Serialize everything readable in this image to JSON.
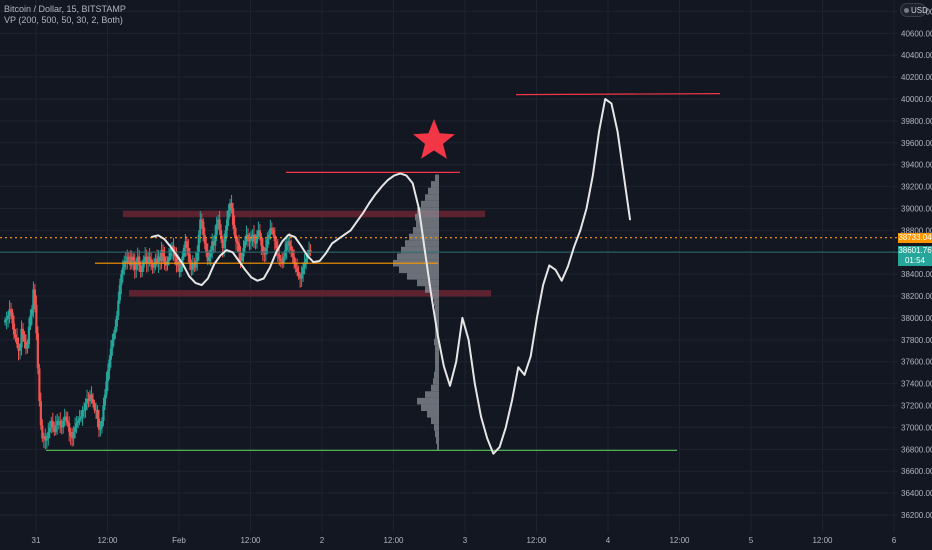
{
  "header": {
    "symbol_line": "Bitcoin / Dollar, 15, BITSTAMP",
    "indicator_line": "VP (200, 500, 50, 30, 2, Both)"
  },
  "currency_badge": "USD",
  "price_tags": {
    "dotted_level": "38733.04",
    "last_price": "38601.76",
    "countdown": "01:54"
  },
  "colors": {
    "background": "#131722",
    "up_candle": "#26a69a",
    "down_candle": "#ef5350",
    "dotted_level": "#ff9800",
    "poc_line": "#ff9800",
    "resistance_line": "#f23645",
    "support_line": "#4caf50",
    "zone_fill": "#6b2433",
    "star": "#f23645",
    "projection": "#e6e6e6",
    "volume_profile": "#8a8d96"
  },
  "chart_data": {
    "type": "candlestick",
    "y_axis": {
      "min": 36100,
      "max": 41000,
      "ticks": [
        36200,
        36400,
        36600,
        36800,
        37000,
        37200,
        37400,
        37600,
        37800,
        38000,
        38200,
        38400,
        38600,
        38800,
        39000,
        39200,
        39400,
        39600,
        39800,
        40000,
        40200,
        40400,
        40600,
        40800
      ],
      "tick_labels": [
        "36200.00",
        "36400.00",
        "36600.00",
        "36800.00",
        "37000.00",
        "37200.00",
        "37400.00",
        "37600.00",
        "37800.00",
        "38000.00",
        "38200.00",
        "38400.00",
        "38600.00",
        "38800.00",
        "39000.00",
        "39200.00",
        "39400.00",
        "39600.00",
        "39800.00",
        "40000.00",
        "40200.00",
        "40400.00",
        "40600.00",
        "40800.00"
      ]
    },
    "x_axis": {
      "ticks": [
        0,
        48,
        96,
        144,
        192,
        240,
        288,
        336,
        384,
        432,
        480,
        528,
        576,
        624
      ],
      "tick_labels": [
        "31",
        "12:00",
        "Feb",
        "12:00",
        "2",
        "12:00",
        "3",
        "12:00",
        "4",
        "12:00",
        "5",
        "12:00",
        "6",
        ""
      ]
    },
    "candles_close": [
      37980,
      37990,
      38020,
      38080,
      38050,
      37950,
      37850,
      37820,
      37760,
      37700,
      37730,
      37900,
      37850,
      37780,
      37720,
      37760,
      37920,
      38020,
      38080,
      38260,
      38120,
      37860,
      37540,
      37240,
      37020,
      36900,
      36920,
      36880,
      36900,
      36960,
      37000,
      37060,
      37000,
      36960,
      37020,
      37060,
      37060,
      37020,
      37000,
      37060,
      37100,
      37060,
      37040,
      36960,
      36920,
      36900,
      36960,
      37000,
      37040,
      37060,
      37080,
      37100,
      37160,
      37160,
      37220,
      37260,
      37240,
      37300,
      37260,
      37220,
      37160,
      37160,
      37080,
      36980,
      37000,
      37060,
      37200,
      37300,
      37420,
      37520,
      37620,
      37720,
      37800,
      37860,
      37920,
      38020,
      38160,
      38300,
      38400,
      38460,
      38520,
      38500,
      38560,
      38540,
      38480,
      38560,
      38520,
      38440,
      38500,
      38560,
      38480,
      38420,
      38460,
      38520,
      38560,
      38500,
      38560,
      38540,
      38500,
      38460,
      38480,
      38540,
      38500,
      38560,
      38520,
      38620,
      38560,
      38500,
      38480,
      38520,
      38560,
      38620,
      38660,
      38600,
      38560,
      38480,
      38520,
      38420,
      38460,
      38560,
      38640,
      38700,
      38640,
      38580,
      38500,
      38440,
      38500,
      38460,
      38520,
      38600,
      38760,
      38900,
      38880,
      38760,
      38680,
      38600,
      38520,
      38560,
      38620,
      38700,
      38660,
      38760,
      38860,
      38900,
      38800,
      38720,
      38640,
      38700,
      38800,
      38900,
      38980,
      39050,
      39000,
      38850,
      38760,
      38700,
      38680,
      38600,
      38520,
      38560,
      38640,
      38700,
      38760,
      38740,
      38700,
      38720,
      38760,
      38700,
      38680,
      38760,
      38800,
      38740,
      38660,
      38600,
      38580,
      38640,
      38720,
      38760,
      38820,
      38800,
      38760,
      38700,
      38640,
      38580,
      38540,
      38520,
      38500,
      38560,
      38620,
      38680,
      38700,
      38660,
      38620,
      38560,
      38500,
      38460,
      38420,
      38380,
      38360,
      38400,
      38460,
      38500,
      38540,
      38580,
      38620,
      38600
    ],
    "levels": {
      "resistance_top": 40040,
      "resistance_mid": 39330,
      "dotted": 38733.04,
      "last": 38601.76,
      "poc": 38500,
      "support": 36790
    },
    "zones": [
      {
        "top": 38980,
        "bottom": 38920
      },
      {
        "top": 38255,
        "bottom": 38195
      }
    ],
    "projection_curve": [
      [
        38740,
        38760
      ],
      [
        38755,
        38650
      ],
      [
        38720,
        38520
      ],
      [
        38650,
        38430
      ],
      [
        38570,
        38400
      ],
      [
        38490,
        38420
      ],
      [
        38380,
        38500
      ],
      [
        38320,
        38650
      ],
      [
        38300,
        38820
      ],
      [
        38360,
        38880
      ],
      [
        38490,
        38850
      ],
      [
        38570,
        38750
      ],
      [
        38620,
        38620
      ],
      [
        38600,
        38500
      ],
      [
        38520,
        38420
      ],
      [
        38440,
        38400
      ],
      [
        38370,
        38460
      ],
      [
        38340,
        38610
      ],
      [
        38360,
        38790
      ],
      [
        38460,
        38900
      ],
      [
        38600,
        38950
      ],
      [
        38700,
        38870
      ],
      [
        38760,
        38700
      ],
      [
        38740,
        38520
      ],
      [
        38660,
        38430
      ],
      [
        38570,
        38450
      ],
      [
        38510,
        38600
      ],
      [
        38520,
        38720
      ],
      [
        38590,
        38780
      ],
      [
        38680,
        38760
      ],
      [
        38720,
        38680
      ],
      [
        38760,
        38530
      ],
      [
        38800,
        38450
      ],
      [
        38880,
        38470
      ],
      [
        38960,
        38520
      ],
      [
        39050,
        38600
      ],
      [
        39130,
        38720
      ],
      [
        39200,
        38900
      ],
      [
        39260,
        39080
      ],
      [
        39300,
        39200
      ],
      [
        39320,
        39280
      ],
      [
        39300,
        39320
      ],
      [
        39230,
        39310
      ],
      [
        39000,
        39250
      ],
      [
        38600,
        39180
      ],
      [
        38200,
        39120
      ],
      [
        37850,
        39100
      ],
      [
        37560,
        39080
      ],
      [
        37380,
        39060
      ],
      [
        37600,
        39070
      ],
      [
        38000,
        39080
      ],
      [
        37800,
        39100
      ],
      [
        37400,
        39130
      ],
      [
        37100,
        39170
      ],
      [
        36900,
        39220
      ],
      [
        36760,
        39260
      ],
      [
        36820,
        39300
      ],
      [
        37000,
        39350
      ],
      [
        37250,
        39400
      ],
      [
        37550,
        39440
      ],
      [
        37480,
        39460
      ],
      [
        37650,
        39490
      ],
      [
        38000,
        39520
      ],
      [
        38300,
        39550
      ],
      [
        38480,
        39580
      ],
      [
        38440,
        39600
      ],
      [
        38340,
        39620
      ],
      [
        38470,
        39640
      ],
      [
        38650,
        39670
      ],
      [
        38800,
        39700
      ],
      [
        39000,
        39730
      ],
      [
        39300,
        39760
      ],
      [
        39700,
        39790
      ],
      [
        40000,
        39820
      ],
      [
        39960,
        39850
      ],
      [
        39700,
        39880
      ],
      [
        39300,
        39910
      ],
      [
        38900,
        39940
      ]
    ]
  }
}
